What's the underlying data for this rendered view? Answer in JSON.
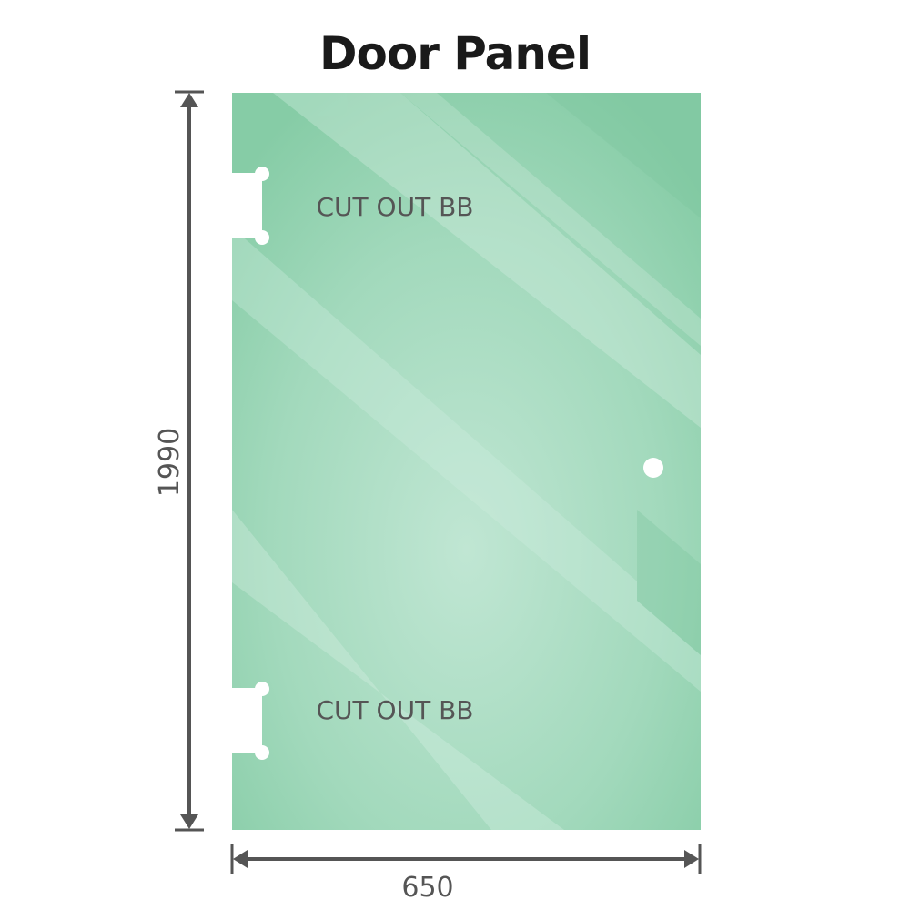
{
  "title": "Door Panel",
  "cutout_labels": [
    "CUT OUT BB",
    "CUT OUT BB"
  ],
  "dimensions": {
    "height": "1990",
    "width": "650"
  },
  "colors": {
    "glass": "#86cca6",
    "glass_highlight": "#bfe6d2",
    "dimension_line": "#555555"
  }
}
